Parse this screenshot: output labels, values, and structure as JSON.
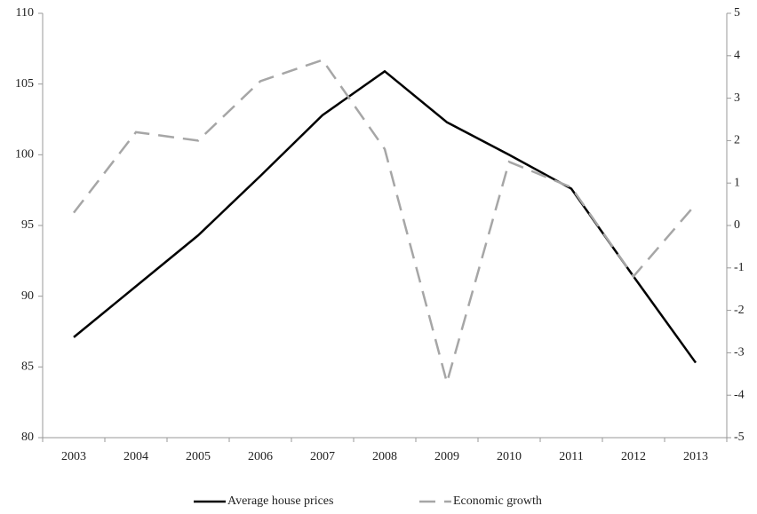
{
  "chart_data": {
    "type": "line",
    "categories": [
      "2003",
      "2004",
      "2005",
      "2006",
      "2007",
      "2008",
      "2009",
      "2010",
      "2011",
      "2012",
      "2013"
    ],
    "series": [
      {
        "name": "Average house prices",
        "color": "#000000",
        "values": [
          87.1,
          90.7,
          94.3,
          98.5,
          102.8,
          105.9,
          102.3,
          100.0,
          97.6,
          91.4,
          85.3
        ]
      },
      {
        "name": "Economic growth",
        "color": "#a6a6a6",
        "dashed": true,
        "axis": "y2",
        "values": [
          0.3,
          2.2,
          2.0,
          3.4,
          3.9,
          1.8,
          -3.7,
          1.5,
          0.9,
          -1.2,
          0.5
        ]
      }
    ],
    "ylim": [
      80,
      110
    ],
    "yticks": [
      80,
      85,
      90,
      95,
      100,
      105,
      110
    ],
    "y2lim": [
      -5,
      5
    ],
    "y2ticks": [
      -5,
      -4,
      -3,
      -2,
      -1,
      0,
      1,
      2,
      3,
      4,
      5
    ],
    "grid": false,
    "legend": "bottom"
  }
}
